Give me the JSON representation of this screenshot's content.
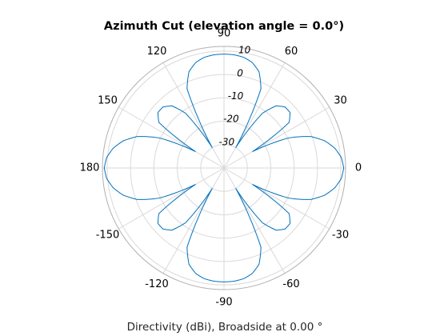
{
  "chart_data": {
    "type": "line",
    "coordinate_system": "polar",
    "title": "Azimuth Cut (elevation angle = 0.0°)",
    "xlabel": "Directivity (dBi), Broadside at 0.00 °",
    "angle_ticks": [
      {
        "angle": 0,
        "label": "0"
      },
      {
        "angle": 30,
        "label": "30"
      },
      {
        "angle": 60,
        "label": "60"
      },
      {
        "angle": 90,
        "label": "90"
      },
      {
        "angle": 120,
        "label": "120"
      },
      {
        "angle": 150,
        "label": "150"
      },
      {
        "angle": 180,
        "label": "180"
      },
      {
        "angle": 210,
        "label": "-150"
      },
      {
        "angle": 240,
        "label": "-120"
      },
      {
        "angle": 270,
        "label": "-90"
      },
      {
        "angle": 300,
        "label": "-60"
      },
      {
        "angle": 330,
        "label": "-30"
      }
    ],
    "radial_ticks": [
      {
        "value": -30,
        "label": "-30"
      },
      {
        "value": -20,
        "label": "-20"
      },
      {
        "value": -10,
        "label": "-10"
      },
      {
        "value": 0,
        "label": "0"
      },
      {
        "value": 10,
        "label": "10"
      }
    ],
    "rlim": [
      -40,
      12
    ],
    "grid": true,
    "color": "#0072BD",
    "grid_color": "#d9d9d9",
    "series": [
      {
        "angle_deg": [
          0,
          5,
          10,
          15,
          20,
          25,
          30,
          35,
          40,
          45,
          50,
          55,
          60,
          65,
          70,
          75,
          80,
          85,
          90,
          95,
          100,
          105,
          110,
          115,
          120,
          125,
          130,
          135,
          140,
          145,
          150,
          155,
          160,
          165,
          170,
          175,
          180,
          185,
          190,
          195,
          200,
          205,
          210,
          215,
          220,
          225,
          230,
          235,
          240,
          245,
          250,
          255,
          260,
          265,
          270,
          275,
          280,
          285,
          290,
          295,
          300,
          305,
          310,
          315,
          320,
          325,
          330,
          335,
          340,
          345,
          350,
          355
        ],
        "directivity_dbi": [
          11.2,
          10.4,
          8.2,
          4.7,
          -0.6,
          -9.6,
          -26,
          -6,
          -3.1,
          -3.1,
          -5.3,
          -11.5,
          -30,
          -2.6,
          3.8,
          6.7,
          8.1,
          8.6,
          8.7,
          8.6,
          8.1,
          6.7,
          3.8,
          -2.6,
          -30,
          -11.5,
          -5.3,
          -3.1,
          -3.1,
          -6,
          -26,
          -9.6,
          -0.6,
          4.7,
          8.2,
          10.4,
          11.2,
          10.4,
          8.2,
          4.7,
          -0.6,
          -9.6,
          -26,
          -6,
          -3.1,
          -3.1,
          -5.3,
          -11.5,
          -30,
          -2.6,
          3.8,
          6.7,
          8.1,
          8.6,
          8.7,
          8.6,
          8.1,
          6.7,
          3.8,
          -2.6,
          -30,
          -11.5,
          -5.3,
          -3.1,
          -3.1,
          -6,
          -26,
          -9.6,
          -0.6,
          4.7,
          8.2,
          10.4
        ]
      }
    ]
  }
}
